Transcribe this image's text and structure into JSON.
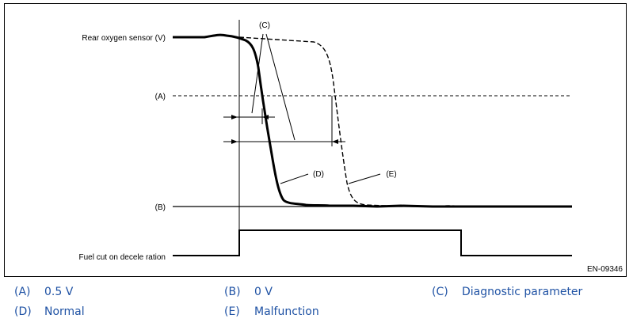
{
  "diagram": {
    "labels": {
      "rear_oxygen_sensor": "Rear oxygen sensor (V)",
      "fuel_cut": "Fuel cut on decele ration",
      "marker_a": "(A)",
      "marker_b": "(B)",
      "marker_c": "(C)",
      "marker_d": "(D)",
      "marker_e": "(E)",
      "figure_id": "EN-09346"
    }
  },
  "legend": [
    {
      "key": "(A)",
      "text": "0.5 V"
    },
    {
      "key": "(B)",
      "text": "0 V"
    },
    {
      "key": "(C)",
      "text": "Diagnostic parameter"
    },
    {
      "key": "(D)",
      "text": "Normal"
    },
    {
      "key": "(E)",
      "text": "Malfunction"
    }
  ],
  "colors": {
    "legend_text": "#1f52a4",
    "lines": "#000000"
  }
}
